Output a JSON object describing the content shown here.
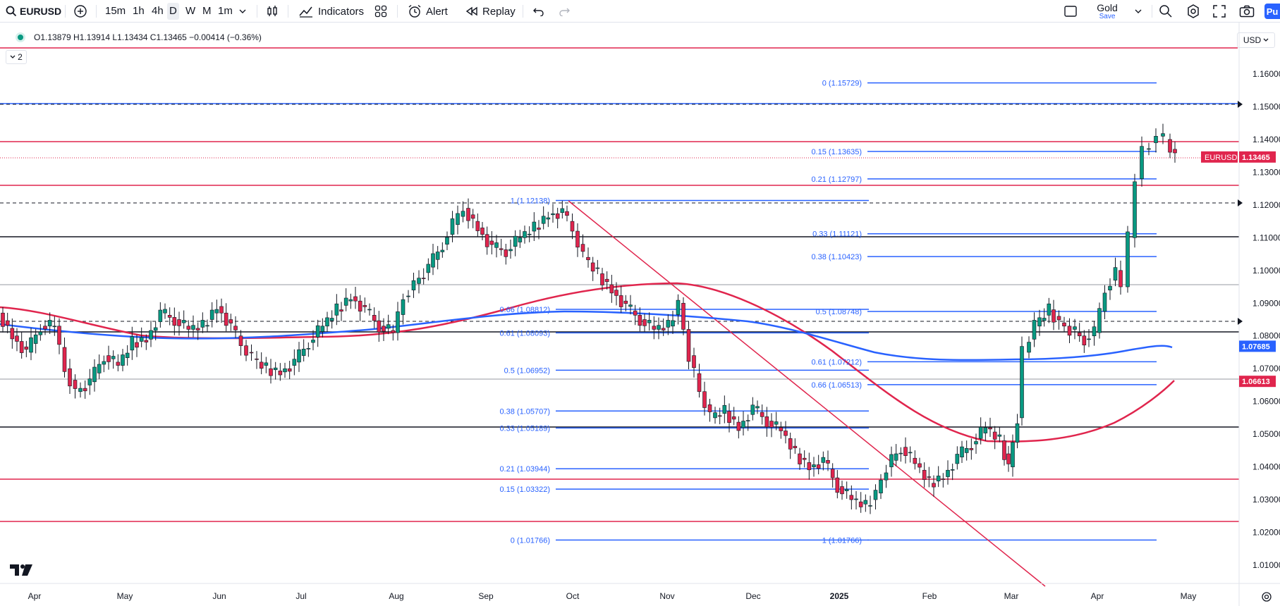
{
  "toolbar": {
    "symbol": "EURUSD",
    "intervals": [
      "15m",
      "1h",
      "4h",
      "D",
      "W",
      "M",
      "1m"
    ],
    "active_interval": "D",
    "indicators_label": "Indicators",
    "alert_label": "Alert",
    "replay_label": "Replay",
    "plan_title": "Gold",
    "plan_sub": "Save",
    "publish_label": "Pu"
  },
  "legend": {
    "ohlc": "O1.13879  H1.13914  L1.13434  C1.13465  −0.00414 (−0.36%)",
    "collapse_count": "2"
  },
  "currency_label": "USD",
  "price_axis": {
    "ticks": [
      "1.16000",
      "1.15000",
      "1.14000",
      "1.13000",
      "1.12000",
      "1.11000",
      "1.10000",
      "1.09000",
      "1.08000",
      "1.07000",
      "1.06000",
      "1.05000",
      "1.04000",
      "1.03000",
      "1.02000",
      "1.01000"
    ],
    "labels": [
      {
        "text": "EURUSD",
        "value": "1.13465",
        "color": "#e0254d"
      },
      {
        "text": "",
        "value": "1.07685",
        "color": "#2962ff"
      },
      {
        "text": "",
        "value": "1.06613",
        "color": "#e0254d"
      }
    ]
  },
  "time_axis": [
    "Apr",
    "May",
    "Jun",
    "Jul",
    "Aug",
    "Sep",
    "Oct",
    "Nov",
    "Dec",
    "2025",
    "Feb",
    "Mar",
    "Apr",
    "May"
  ],
  "fib_right": [
    "0 (1.15729)",
    "0.15 (1.13635)",
    "0.21 (1.12797)",
    "0.33 (1.11121)",
    "0.38 (1.10423)",
    "0.5 (1.08748)",
    "0.61 (1.07212)",
    "0.66 (1.06513)",
    "1 (1.01766)"
  ],
  "fib_left": [
    "1 (1.12138)",
    "0.66 (1.08812)",
    "0.61 (1.08093)",
    "0.5 (1.06952)",
    "0.38 (1.05707)",
    "0.33 (1.05189)",
    "0.21 (1.03944)",
    "0.15 (1.03322)",
    "0 (1.01766)"
  ],
  "colors": {
    "up": "#089981",
    "down": "#e0254d",
    "ma_red": "#e0254d",
    "ma_blue": "#2962ff",
    "fib": "#2962ff"
  },
  "chart_data": {
    "type": "candlestick",
    "symbol": "EURUSD",
    "interval": "D",
    "ylim": [
      1.005,
      1.17
    ],
    "moving_averages": [
      {
        "color": "red",
        "last": 1.06613
      },
      {
        "color": "blue",
        "last": 1.07685
      }
    ],
    "last_close": 1.13465
  }
}
